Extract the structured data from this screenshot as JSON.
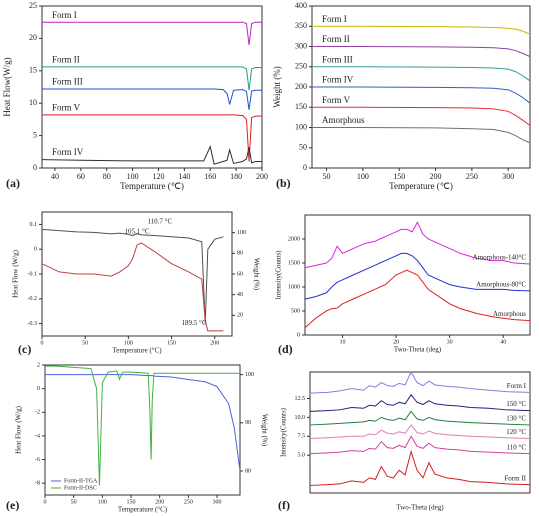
{
  "chart_data": [
    {
      "type": "line",
      "panel_label": "(a)",
      "x_label": "Temperature (℃)",
      "y_label": "Heat Flow(W/g)",
      "legend": "inline-left",
      "xlim": [
        30,
        200
      ],
      "xticks": [
        40,
        60,
        80,
        100,
        120,
        140,
        160,
        180,
        200
      ],
      "ylim": [
        0,
        25
      ],
      "yticks": [
        0,
        5,
        10,
        15,
        20,
        25
      ],
      "x": [
        30,
        60,
        100,
        140,
        155,
        160,
        163,
        170,
        173,
        175,
        178,
        185,
        188,
        190,
        192,
        195,
        200
      ],
      "series": [
        {
          "name": "Form I",
          "color": "#c020c0",
          "values": [
            22.5,
            22.5,
            22.5,
            22.5,
            22.5,
            22.5,
            22.5,
            22.5,
            22.5,
            22.5,
            22.5,
            22.5,
            22.3,
            19,
            22.3,
            22.5,
            22.5
          ]
        },
        {
          "name": "Form II",
          "color": "#20a080",
          "values": [
            15.6,
            15.6,
            15.6,
            15.6,
            15.6,
            15.6,
            15.6,
            15.6,
            15.6,
            15.6,
            15.6,
            15.6,
            15.3,
            12,
            15.3,
            15.5,
            15.5
          ]
        },
        {
          "name": "Form III",
          "color": "#2050d0",
          "values": [
            12.2,
            12.2,
            12.2,
            12.2,
            12.2,
            12.2,
            12.2,
            12.1,
            11.5,
            9.8,
            12,
            12.1,
            11.8,
            9,
            11.9,
            12,
            12
          ]
        },
        {
          "name": "Form V",
          "color": "#e02020",
          "values": [
            8.2,
            8.2,
            8.2,
            8.2,
            8.2,
            8.2,
            8.2,
            8.2,
            8.2,
            8.2,
            8.2,
            8.1,
            7.5,
            1,
            7.8,
            8,
            8
          ]
        },
        {
          "name": "Form IV",
          "color": "#303030",
          "values": [
            1.3,
            1.2,
            1.1,
            1.1,
            1.1,
            3.3,
            0.6,
            1,
            1.2,
            2.8,
            0.7,
            1,
            1.4,
            3.2,
            0.8,
            1,
            1
          ]
        }
      ]
    },
    {
      "type": "line",
      "panel_label": "(b)",
      "x_label": "Temperature (℃)",
      "y_label": "Weight (%)",
      "legend": "inline-left",
      "xlim": [
        30,
        330
      ],
      "xticks": [
        50,
        100,
        150,
        200,
        250,
        300
      ],
      "ylim": [
        0,
        400
      ],
      "yticks": [
        0,
        50,
        100,
        150,
        200,
        250,
        300,
        350,
        400
      ],
      "x": [
        30,
        100,
        200,
        250,
        280,
        300,
        310,
        320,
        330
      ],
      "series": [
        {
          "name": "Form I",
          "color": "#c8b400",
          "values": [
            350,
            350,
            349,
            348,
            347,
            345,
            343,
            338,
            330
          ]
        },
        {
          "name": "Form II",
          "color": "#9040a0",
          "values": [
            300,
            300,
            299,
            298,
            297,
            294,
            290,
            283,
            275
          ]
        },
        {
          "name": "Form III",
          "color": "#30a0a0",
          "values": [
            250,
            250,
            249,
            248,
            247,
            244,
            238,
            228,
            215
          ]
        },
        {
          "name": "Form IV",
          "color": "#3060c0",
          "values": [
            200,
            200,
            199,
            198,
            197,
            193,
            185,
            174,
            160
          ]
        },
        {
          "name": "Form V",
          "color": "#e03030",
          "values": [
            150,
            150,
            149,
            148,
            146,
            140,
            130,
            118,
            105
          ]
        },
        {
          "name": "Amorphous",
          "color": "#707070",
          "values": [
            100,
            100,
            99,
            97,
            95,
            88,
            80,
            70,
            62
          ]
        }
      ]
    },
    {
      "type": "line",
      "panel_label": "(c)",
      "x_label": "Temperature (°C)",
      "y_label": "Heat Flow (W/g)",
      "y2_label": "Weight (%)",
      "annotations": [
        "110.7 °C",
        "105.1 °C",
        "189.5 °C"
      ],
      "xlim": [
        0,
        220
      ],
      "xticks": [
        0,
        50,
        100,
        150,
        200
      ],
      "ylim": [
        -0.35,
        0.15
      ],
      "yticks": [
        0.1,
        0,
        -0.1,
        -0.2,
        -0.3
      ],
      "y2lim": [
        0,
        120
      ],
      "y2ticks": [
        20,
        40,
        60,
        80,
        100
      ],
      "x": [
        0,
        20,
        40,
        60,
        80,
        90,
        100,
        105,
        110,
        115,
        130,
        150,
        170,
        185,
        189,
        192,
        200,
        210
      ],
      "series": [
        {
          "color": "#505050",
          "values": [
            0.08,
            0.075,
            0.07,
            0.068,
            0.062,
            0.065,
            0.06,
            0.055,
            0.062,
            0.058,
            0.055,
            0.05,
            0.045,
            0.03,
            -0.3,
            0.0,
            0.04,
            0.05
          ]
        },
        {
          "color": "#c04040",
          "axis": "y2",
          "values": [
            70,
            62,
            60,
            60,
            58,
            62,
            68,
            75,
            88,
            90,
            82,
            70,
            62,
            55,
            15,
            5,
            5,
            5
          ]
        }
      ]
    },
    {
      "type": "line",
      "panel_label": "(d)",
      "x_label": "Two-Theta (deg)",
      "y_label": "Intensity(Counts)",
      "legend": "inline-right",
      "xlim": [
        3,
        45
      ],
      "xticks": [
        10,
        20,
        30,
        40
      ],
      "ylim": [
        0,
        2500
      ],
      "yticks": [
        0,
        500,
        1000,
        1500,
        2000
      ],
      "x": [
        3,
        5,
        7,
        8,
        9,
        10,
        12,
        14,
        16,
        18,
        20,
        21,
        22,
        23,
        24,
        25,
        26,
        28,
        30,
        32,
        35,
        38,
        40,
        42,
        45
      ],
      "series": [
        {
          "name": "Amorphous-140°C",
          "color": "#e020e0",
          "values": [
            1400,
            1450,
            1500,
            1600,
            1850,
            1700,
            1800,
            1900,
            1950,
            2050,
            2150,
            2200,
            2200,
            2150,
            2350,
            2100,
            2000,
            1900,
            1800,
            1700,
            1600,
            1550,
            1550,
            1500,
            1480
          ]
        },
        {
          "name": "Amorphous-80°C",
          "color": "#2030d0",
          "values": [
            750,
            800,
            880,
            1000,
            1100,
            1150,
            1250,
            1350,
            1450,
            1550,
            1650,
            1700,
            1700,
            1650,
            1550,
            1400,
            1250,
            1150,
            1050,
            1000,
            950,
            950,
            950,
            930,
            920
          ]
        },
        {
          "name": "Amorphous",
          "color": "#e02020",
          "values": [
            150,
            350,
            500,
            550,
            560,
            650,
            750,
            850,
            950,
            1050,
            1250,
            1300,
            1350,
            1300,
            1250,
            1100,
            950,
            800,
            650,
            550,
            450,
            380,
            350,
            320,
            300
          ]
        }
      ]
    },
    {
      "type": "line",
      "panel_label": "(e)",
      "x_label": "Temperature (°C)",
      "y_label": "Heat Flow (W/g)",
      "y2_label": "Weight (%)",
      "legend": "lower left",
      "xlim": [
        0,
        340
      ],
      "xticks": [
        0,
        50,
        100,
        150,
        200,
        250,
        300
      ],
      "ylim": [
        -9,
        2
      ],
      "yticks": [
        2,
        0,
        -2,
        -4,
        -6,
        -8
      ],
      "y2lim": [
        75,
        102
      ],
      "y2ticks": [
        80,
        90,
        100
      ],
      "x": [
        0,
        20,
        50,
        80,
        90,
        95,
        100,
        110,
        125,
        130,
        135,
        150,
        180,
        183,
        185,
        187,
        190,
        220,
        250,
        280,
        300,
        320,
        330,
        340
      ],
      "series": [
        {
          "name": "Form-II-TGA",
          "color": "#5060e0",
          "axis": "y2",
          "values": [
            100,
            100,
            100,
            100,
            100,
            100,
            100,
            100,
            100,
            100,
            100,
            100,
            99.8,
            99.8,
            99.8,
            99.8,
            99.7,
            99.5,
            99,
            98.5,
            97.5,
            94,
            89,
            80
          ]
        },
        {
          "name": "Form-II-DSC",
          "color": "#40b040",
          "values": [
            1.9,
            1.9,
            1.8,
            1.7,
            0,
            -8.2,
            0.5,
            1.4,
            1.5,
            0.8,
            1.4,
            1.4,
            1.3,
            -2,
            -6,
            -1,
            1.3,
            1.3,
            1.3,
            1.3,
            1.3,
            1.3,
            1.3,
            1.3
          ]
        }
      ]
    },
    {
      "type": "line",
      "panel_label": "(f)",
      "x_label": "Two-Theta (deg)",
      "y_label": "Intensity(Counts)",
      "legend": "inline-right",
      "xlim": [
        3,
        40
      ],
      "ylim": [
        0,
        16
      ],
      "yticks": [
        {
          "value": 5,
          "label": "5.0"
        },
        7.5,
        {
          "value": 10,
          "label": "10.0"
        },
        12.5
      ],
      "x": [
        3,
        6,
        8,
        10,
        12,
        13,
        14,
        15,
        16,
        17,
        18,
        19,
        20,
        21,
        22,
        23,
        24,
        26,
        28,
        30,
        33,
        36,
        40
      ],
      "series": [
        {
          "name": "Form I",
          "color": "#8080e0",
          "values": [
            13.2,
            13.3,
            13.5,
            13.8,
            13.6,
            14.2,
            14,
            14.6,
            14.2,
            14.1,
            14.5,
            14.3,
            16,
            14.6,
            14.2,
            14.8,
            14.3,
            14.1,
            14,
            13.8,
            13.6,
            13.4,
            13.3
          ]
        },
        {
          "name": "150 °C",
          "color": "#202080",
          "values": [
            10.8,
            10.9,
            11,
            11.3,
            11.2,
            11.6,
            11.5,
            12.2,
            11.7,
            11.6,
            12,
            11.8,
            13,
            12,
            11.7,
            12.2,
            11.8,
            11.6,
            11.5,
            11.3,
            11.2,
            11,
            10.9
          ]
        },
        {
          "name": "130 °C",
          "color": "#208040",
          "values": [
            9,
            9.1,
            9.2,
            9.3,
            9.4,
            9.6,
            9.5,
            10,
            9.7,
            9.6,
            9.9,
            9.7,
            10.8,
            9.8,
            9.6,
            10,
            9.7,
            9.5,
            9.4,
            9.3,
            9.2,
            9.1,
            9
          ]
        },
        {
          "name": "120 °C",
          "color": "#e080b0",
          "values": [
            7.2,
            7.3,
            7.4,
            7.5,
            7.5,
            7.8,
            7.7,
            8.3,
            7.9,
            7.8,
            8.1,
            7.9,
            9,
            8,
            7.8,
            8.2,
            7.9,
            7.7,
            7.6,
            7.5,
            7.4,
            7.3,
            7.2
          ]
        },
        {
          "name": "110 °C",
          "color": "#d040a0",
          "values": [
            5.2,
            5.3,
            5.4,
            5.6,
            5.5,
            5.9,
            5.8,
            6.8,
            6,
            5.9,
            6.3,
            6,
            7.5,
            6.2,
            5.9,
            6.6,
            6,
            5.8,
            5.7,
            5.5,
            5.4,
            5.3,
            5.2
          ]
        },
        {
          "name": "Form II",
          "color": "#d02020",
          "values": [
            1,
            1.1,
            1.2,
            1.6,
            1.4,
            2,
            1.8,
            3.5,
            2.2,
            2,
            3,
            2.4,
            5.5,
            3,
            2,
            4,
            2.5,
            2,
            1.8,
            1.5,
            1.4,
            1.2,
            1.1
          ]
        }
      ]
    }
  ]
}
